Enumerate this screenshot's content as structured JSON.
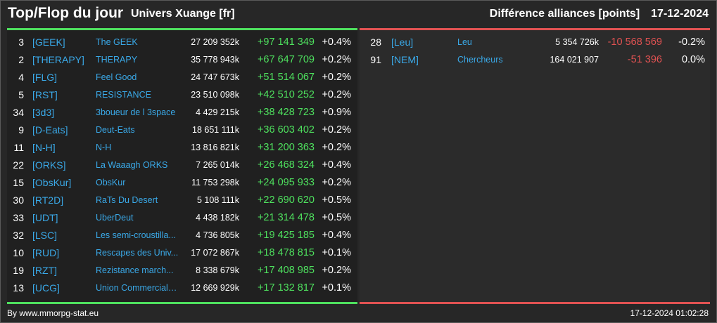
{
  "header": {
    "title": "Top/Flop du jour",
    "universe": "Univers Xuange [fr]",
    "subtitle": "Différence alliances [points]",
    "date": "17-12-2024"
  },
  "colors": {
    "background": "#272727",
    "positive": "#4ee05e",
    "negative": "#e15252",
    "link": "#3aa9e8"
  },
  "top": [
    {
      "rank": "3",
      "tag": "[GEEK]",
      "name": "The GEEK",
      "points": "27 209 352k",
      "diff": "+97 141 349",
      "pct": "+0.4%"
    },
    {
      "rank": "2",
      "tag": "[THERAPY]",
      "name": "THERAPY",
      "points": "35 778 943k",
      "diff": "+67 647 709",
      "pct": "+0.2%"
    },
    {
      "rank": "4",
      "tag": "[FLG]",
      "name": "Feel Good",
      "points": "24 747 673k",
      "diff": "+51 514 067",
      "pct": "+0.2%"
    },
    {
      "rank": "5",
      "tag": "[RST]",
      "name": "RESISTANCE",
      "points": "23 510 098k",
      "diff": "+42 510 252",
      "pct": "+0.2%"
    },
    {
      "rank": "34",
      "tag": "[3d3]",
      "name": "3boueur de l 3space",
      "points": "4 429 215k",
      "diff": "+38 428 723",
      "pct": "+0.9%"
    },
    {
      "rank": "9",
      "tag": "[D-Eats]",
      "name": "Deut-Eats",
      "points": "18 651 111k",
      "diff": "+36 603 402",
      "pct": "+0.2%"
    },
    {
      "rank": "11",
      "tag": "[N-H]",
      "name": "N-H",
      "points": "13 816 821k",
      "diff": "+31 200 363",
      "pct": "+0.2%"
    },
    {
      "rank": "22",
      "tag": "[ORKS]",
      "name": "La Waaagh ORKS",
      "points": "7 265 014k",
      "diff": "+26 468 324",
      "pct": "+0.4%"
    },
    {
      "rank": "15",
      "tag": "[ObsKur]",
      "name": "ObsKur",
      "points": "11 753 298k",
      "diff": "+24 095 933",
      "pct": "+0.2%"
    },
    {
      "rank": "30",
      "tag": "[RT2D]",
      "name": "RaTs Du Desert",
      "points": "5 108 111k",
      "diff": "+22 690 620",
      "pct": "+0.5%"
    },
    {
      "rank": "33",
      "tag": "[UDT]",
      "name": "UberDeut",
      "points": "4 438 182k",
      "diff": "+21 314 478",
      "pct": "+0.5%"
    },
    {
      "rank": "32",
      "tag": "[LSC]",
      "name": "Les semi-croustilla...",
      "points": "4 736 805k",
      "diff": "+19 425 185",
      "pct": "+0.4%"
    },
    {
      "rank": "10",
      "tag": "[RUD]",
      "name": "Rescapes des Univ...",
      "points": "17 072 867k",
      "diff": "+18 478 815",
      "pct": "+0.1%"
    },
    {
      "rank": "19",
      "tag": "[RZT]",
      "name": "Rezistance march...",
      "points": "8 338 679k",
      "diff": "+17 408 985",
      "pct": "+0.2%"
    },
    {
      "rank": "13",
      "tag": "[UCG]",
      "name": "Union Commerciale...",
      "points": "12 669 929k",
      "diff": "+17 132 817",
      "pct": "+0.1%"
    }
  ],
  "flop": [
    {
      "rank": "28",
      "tag": "[Leu]",
      "name": "Leu",
      "points": "5 354 726k",
      "diff": "-10 568 569",
      "pct": "-0.2%"
    },
    {
      "rank": "91",
      "tag": "[NEM]",
      "name": "Chercheurs",
      "points": "164 021 907",
      "diff": "-51 396",
      "pct": "0.0%"
    }
  ],
  "footer": {
    "credit": "By www.mmorpg-stat.eu",
    "timestamp": "17-12-2024 01:02:28"
  }
}
